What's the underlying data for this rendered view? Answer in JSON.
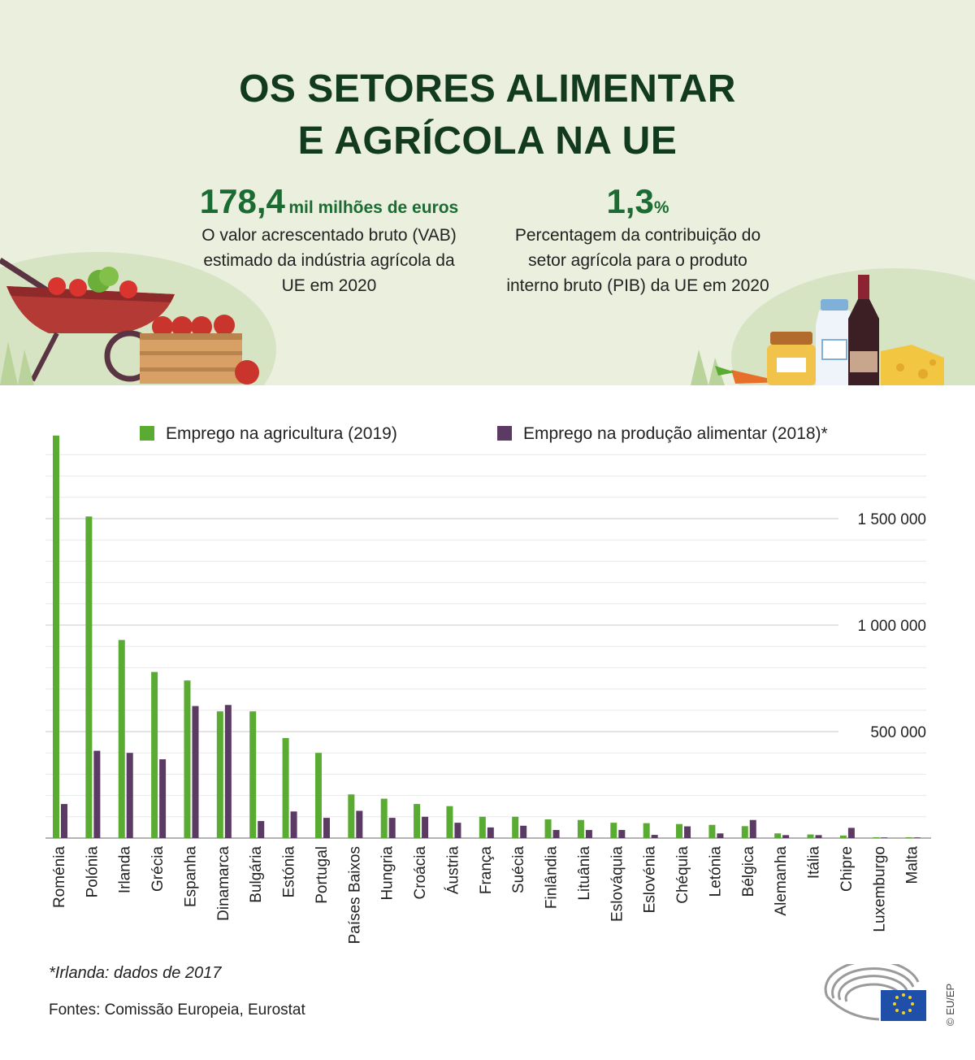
{
  "header": {
    "title_line1": "OS SETORES ALIMENTAR",
    "title_line2": "E AGRÍCOLA NA UE"
  },
  "stats": {
    "gva": {
      "value": "178,4",
      "unit": "mil milhões de euros",
      "line1": "O valor acrescentado bruto (VAB)",
      "line2": "estimado da indústria agrícola da",
      "line3": "UE em 2020"
    },
    "gdp": {
      "value": "1,3",
      "unit": "%",
      "line1": "Percentagem da contribuição do",
      "line2": "setor agrícola para o produto",
      "line3": "interno bruto (PIB) da UE em 2020"
    }
  },
  "chart_data": {
    "type": "bar",
    "categories": [
      "Roménia",
      "Polónia",
      "Irlanda",
      "Grécia",
      "Espanha",
      "Dinamarca",
      "Bulgária",
      "Estónia",
      "Portugal",
      "Países Baixos",
      "Hungria",
      "Croácia",
      "Áustria",
      "França",
      "Suécia",
      "Finlândia",
      "Lituânia",
      "Eslováquia",
      "Eslovénia",
      "Chéquia",
      "Letónia",
      "Bélgica",
      "Alemanha",
      "Itália",
      "Chipre",
      "Luxemburgo",
      "Malta"
    ],
    "series": [
      {
        "name": "Emprego na agricultura (2019)",
        "color": "#5aab32",
        "values": [
          1890000,
          1510000,
          930000,
          780000,
          740000,
          595000,
          595000,
          470000,
          400000,
          205000,
          185000,
          160000,
          150000,
          100000,
          100000,
          88000,
          85000,
          72000,
          70000,
          66000,
          62000,
          56000,
          22000,
          17000,
          12000,
          4000,
          4000
        ]
      },
      {
        "name": "Emprego na produção alimentar (2018)*",
        "color": "#5b3b63",
        "values": [
          160000,
          410000,
          400000,
          370000,
          620000,
          625000,
          80000,
          125000,
          95000,
          128000,
          95000,
          100000,
          72000,
          50000,
          58000,
          38000,
          38000,
          38000,
          15000,
          55000,
          22000,
          85000,
          14000,
          14000,
          48000,
          3000,
          3000
        ]
      }
    ],
    "yticks": [
      {
        "value": 500000,
        "label": "500 000"
      },
      {
        "value": 1000000,
        "label": "1 000 000"
      },
      {
        "value": 1500000,
        "label": "1 500 000"
      }
    ],
    "ylim": [
      0,
      1900000
    ],
    "grid": true,
    "legend_position": "top"
  },
  "footer": {
    "footnote": "*Irlanda: dados de 2017",
    "sources": "Fontes: Comissão Europeia, Eurostat",
    "copyright": "© EU/EP"
  }
}
